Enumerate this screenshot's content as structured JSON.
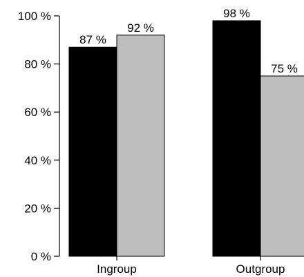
{
  "chart_data": {
    "type": "bar",
    "categories": [
      "Ingroup",
      "Outgroup"
    ],
    "series": [
      {
        "values": [
          87,
          98
        ],
        "color": "#000000",
        "labels": [
          "87 %",
          "98 %"
        ]
      },
      {
        "values": [
          92,
          75
        ],
        "color": "#bdbdbd",
        "labels": [
          "92 %",
          "75 %"
        ]
      }
    ],
    "yticks": [
      0,
      20,
      40,
      60,
      80,
      100
    ],
    "ytick_labels": [
      "0 %",
      "20 %",
      "40 %",
      "60 %",
      "80 %",
      "100 %"
    ],
    "ylim": [
      0,
      100
    ],
    "grid": false,
    "title": "",
    "xlabel": "",
    "ylabel": ""
  }
}
